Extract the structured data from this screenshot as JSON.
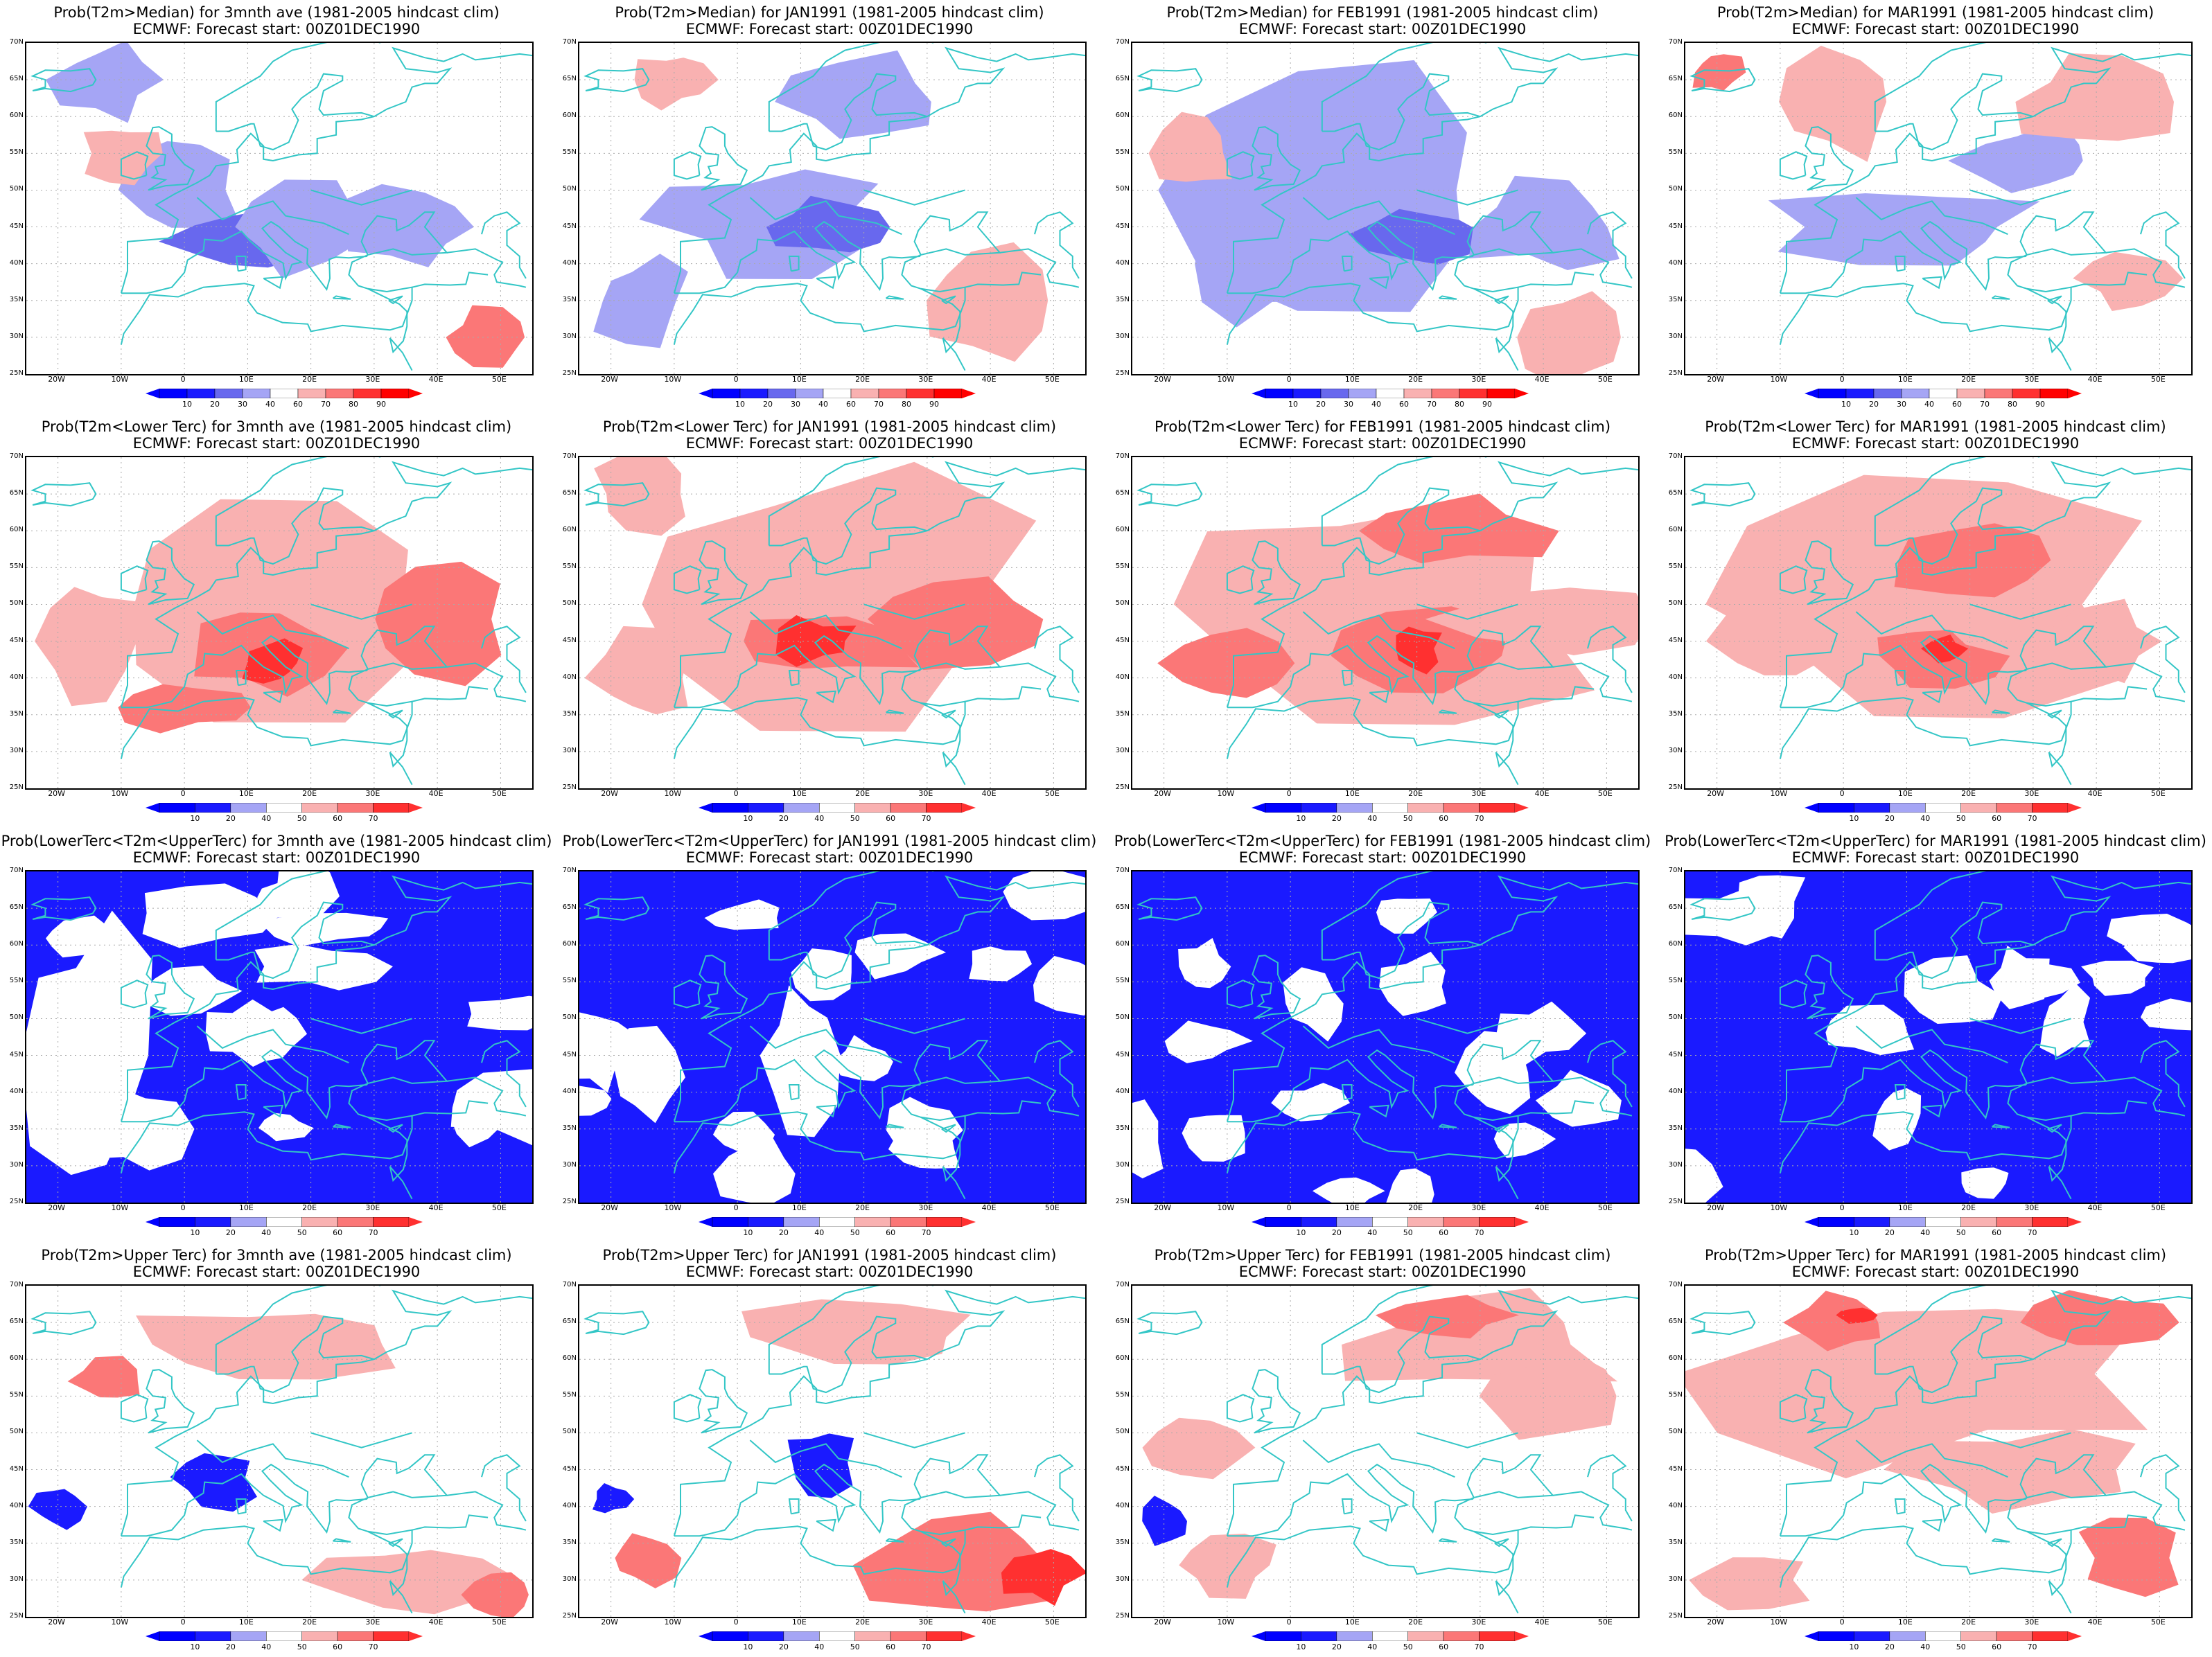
{
  "forecast_line": "ECMWF: Forecast start: 00Z01DEC1990",
  "lat_labels": [
    "70N",
    "65N",
    "60N",
    "55N",
    "50N",
    "45N",
    "40N",
    "35N",
    "30N",
    "25N"
  ],
  "lon_labels": [
    "20W",
    "10W",
    "0",
    "10E",
    "20E",
    "30E",
    "40E",
    "50E"
  ],
  "median_scale": [
    "10",
    "20",
    "30",
    "40",
    "60",
    "70",
    "80",
    "90"
  ],
  "tercile_scale": [
    "10",
    "20",
    "40",
    "50",
    "60",
    "70"
  ],
  "colors": {
    "blue_dark": "#1a1aff",
    "blue_mid": "#6868ee",
    "blue_light": "#a5a5f5",
    "red_light": "#f9b1b1",
    "red_mid": "#fb7777",
    "red_dark": "#ff3030",
    "coast": "#33c6c6"
  },
  "rows": [
    {
      "label": "Prob(T2m>Median)",
      "kind": "median"
    },
    {
      "label": "Prob(T2m<Lower Terc)",
      "kind": "lower"
    },
    {
      "label": "Prob(LowerTerc<T2m<UpperTerc)",
      "kind": "middle"
    },
    {
      "label": "Prob(T2m>Upper Terc)",
      "kind": "upper"
    }
  ],
  "columns": [
    {
      "period": "for 3mnth ave"
    },
    {
      "period": "for JAN1991"
    },
    {
      "period": "for FEB1991"
    },
    {
      "period": "for MAR1991"
    }
  ],
  "clim_note": "(1981-2005 hindcast clim)",
  "panels": [
    {
      "title": "Prob(T2m>Median)  for 3mnth ave (1981-2005 hindcast clim)"
    },
    {
      "title": "Prob(T2m>Median)  for JAN1991 (1981-2005 hindcast clim)"
    },
    {
      "title": "Prob(T2m>Median)  for FEB1991 (1981-2005 hindcast clim)"
    },
    {
      "title": "Prob(T2m>Median)  for MAR1991 (1981-2005 hindcast clim)"
    },
    {
      "title": "Prob(T2m<Lower Terc)  for 3mnth ave (1981-2005 hindcast clim)"
    },
    {
      "title": "Prob(T2m<Lower Terc)  for JAN1991 (1981-2005 hindcast clim)"
    },
    {
      "title": "Prob(T2m<Lower Terc)  for FEB1991 (1981-2005 hindcast clim)"
    },
    {
      "title": "Prob(T2m<Lower Terc)  for MAR1991 (1981-2005 hindcast clim)"
    },
    {
      "title": "Prob(LowerTerc<T2m<UpperTerc)  for 3mnth ave (1981-2005 hindcast clim)"
    },
    {
      "title": "Prob(LowerTerc<T2m<UpperTerc)  for JAN1991 (1981-2005 hindcast clim)"
    },
    {
      "title": "Prob(LowerTerc<T2m<UpperTerc)  for FEB1991 (1981-2005 hindcast clim)"
    },
    {
      "title": "Prob(LowerTerc<T2m<UpperTerc)  for MAR1991 (1981-2005 hindcast clim)"
    },
    {
      "title": "Prob(T2m>Upper Terc)  for 3mnth ave (1981-2005 hindcast clim)"
    },
    {
      "title": "Prob(T2m>Upper Terc)  for JAN1991 (1981-2005 hindcast clim)"
    },
    {
      "title": "Prob(T2m>Upper Terc)  for FEB1991 (1981-2005 hindcast clim)"
    },
    {
      "title": "Prob(T2m>Upper Terc)  for MAR1991 (1981-2005 hindcast clim)"
    }
  ]
}
